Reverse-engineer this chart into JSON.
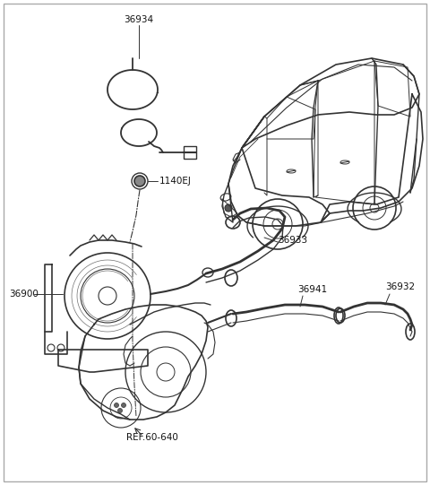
{
  "bg_color": "#ffffff",
  "line_color": "#333333",
  "label_color": "#111111",
  "label_fontsize": 7.5,
  "fig_width": 4.8,
  "fig_height": 5.41,
  "dpi": 100,
  "border_color": "#aaaaaa"
}
